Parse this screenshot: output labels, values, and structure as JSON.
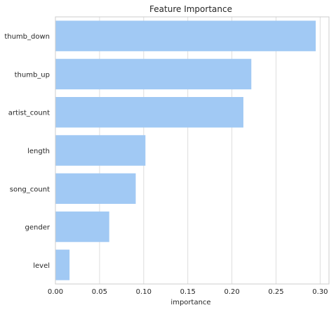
{
  "chart_data": {
    "type": "bar",
    "orientation": "horizontal",
    "title": "Feature Importance",
    "xlabel": "importance",
    "ylabel": "",
    "categories": [
      "thumb_down",
      "thumb_up",
      "artist_count",
      "length",
      "song_count",
      "gender",
      "level"
    ],
    "values": [
      0.295,
      0.222,
      0.213,
      0.102,
      0.091,
      0.061,
      0.016
    ],
    "xlim": [
      0,
      0.31
    ],
    "xticks": [
      0.0,
      0.05,
      0.1,
      0.15,
      0.2,
      0.25,
      0.3
    ],
    "xtick_labels": [
      "0.00",
      "0.05",
      "0.10",
      "0.15",
      "0.20",
      "0.25",
      "0.30"
    ],
    "grid": "vertical",
    "bar_color": "#a1c9f4",
    "grid_color": "#dddddd"
  }
}
